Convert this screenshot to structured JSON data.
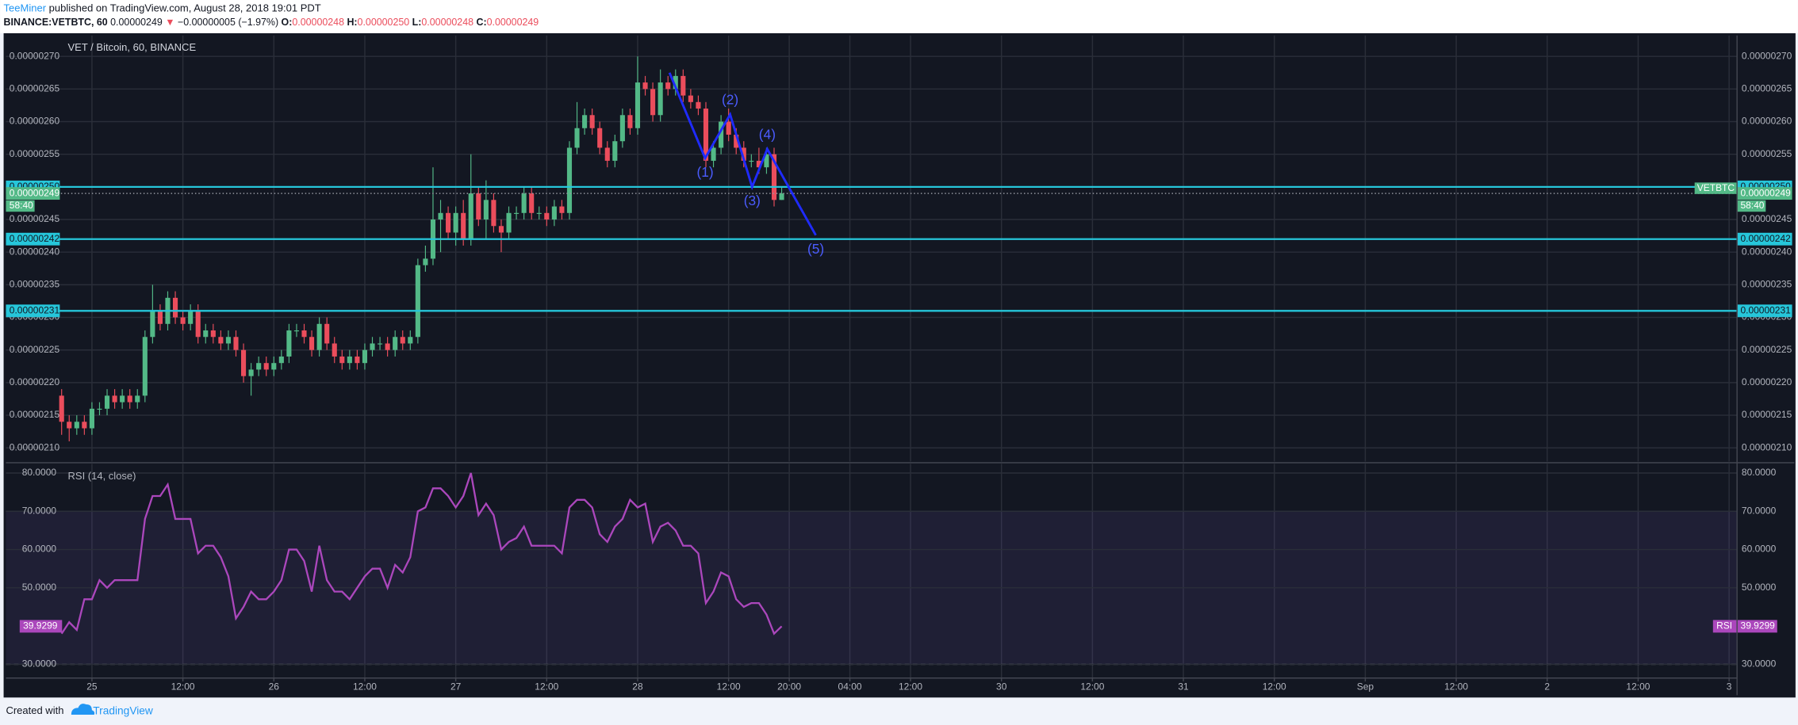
{
  "header": {
    "author": "TeeMiner",
    "published": "published on TradingView.com, August 28, 2018 19:01 PDT",
    "symbol": "BINANCE:VETBTC, 60",
    "last": "0.00000249",
    "arrow": "▼",
    "change": "−0.00000005 (−1.97%)",
    "ohlc": [
      {
        "label": "O:",
        "value": "0.00000248"
      },
      {
        "label": "H:",
        "value": "0.00000250"
      },
      {
        "label": "L:",
        "value": "0.00000248"
      },
      {
        "label": "C:",
        "value": "0.00000249"
      }
    ]
  },
  "footer": {
    "created": "Created with",
    "brand": "TradingView"
  },
  "chart_data": [
    {
      "type": "candlestick",
      "title": "VET / Bitcoin, 60, BINANCE",
      "x": [
        -4,
        -3,
        -2,
        -1,
        0,
        1,
        2,
        3,
        4,
        5,
        6,
        7,
        8,
        9,
        10,
        11,
        12,
        13,
        14,
        15,
        16,
        17,
        18,
        19,
        20,
        21,
        22,
        23,
        24,
        25,
        26,
        27,
        28,
        29,
        30,
        31,
        32,
        33,
        34,
        35,
        36,
        37,
        38,
        39,
        40,
        41,
        42,
        43,
        44,
        45,
        46,
        47,
        48,
        49,
        50,
        51,
        52,
        53,
        54,
        55,
        56,
        57,
        58,
        59,
        60,
        61,
        62,
        63,
        64,
        65,
        66,
        67,
        68,
        69,
        70,
        71,
        72,
        73,
        74,
        75,
        76,
        77,
        78,
        79,
        80,
        81,
        82,
        83,
        84,
        85,
        86,
        87,
        88,
        89,
        90,
        91
      ],
      "open": [
        2.18e-06,
        2.14e-06,
        2.13e-06,
        2.14e-06,
        2.13e-06,
        2.16e-06,
        2.16e-06,
        2.18e-06,
        2.17e-06,
        2.18e-06,
        2.17e-06,
        2.18e-06,
        2.27e-06,
        2.31e-06,
        2.29e-06,
        2.33e-06,
        2.3e-06,
        2.29e-06,
        2.31e-06,
        2.27e-06,
        2.28e-06,
        2.27e-06,
        2.26e-06,
        2.27e-06,
        2.25e-06,
        2.21e-06,
        2.22e-06,
        2.23e-06,
        2.22e-06,
        2.23e-06,
        2.24e-06,
        2.28e-06,
        2.28e-06,
        2.27e-06,
        2.25e-06,
        2.29e-06,
        2.26e-06,
        2.24e-06,
        2.23e-06,
        2.24e-06,
        2.23e-06,
        2.25e-06,
        2.26e-06,
        2.26e-06,
        2.25e-06,
        2.27e-06,
        2.26e-06,
        2.27e-06,
        2.38e-06,
        2.39e-06,
        2.45e-06,
        2.46e-06,
        2.43e-06,
        2.46e-06,
        2.42e-06,
        2.49e-06,
        2.45e-06,
        2.48e-06,
        2.44e-06,
        2.43e-06,
        2.46e-06,
        2.46e-06,
        2.49e-06,
        2.46e-06,
        2.46e-06,
        2.45e-06,
        2.47e-06,
        2.46e-06,
        2.56e-06,
        2.59e-06,
        2.61e-06,
        2.59e-06,
        2.56e-06,
        2.54e-06,
        2.57e-06,
        2.61e-06,
        2.59e-06,
        2.66e-06,
        2.65e-06,
        2.61e-06,
        2.66e-06,
        2.65e-06,
        2.67e-06,
        2.64e-06,
        2.63e-06,
        2.62e-06,
        2.54e-06,
        2.56e-06,
        2.6e-06,
        2.58e-06,
        2.56e-06,
        2.54e-06,
        2.54e-06,
        2.53e-06,
        2.55e-06,
        2.48e-06
      ],
      "high": [
        2.19e-06,
        2.15e-06,
        2.15e-06,
        2.15e-06,
        2.17e-06,
        2.17e-06,
        2.19e-06,
        2.19e-06,
        2.19e-06,
        2.19e-06,
        2.19e-06,
        2.28e-06,
        2.35e-06,
        2.32e-06,
        2.34e-06,
        2.34e-06,
        2.31e-06,
        2.32e-06,
        2.32e-06,
        2.29e-06,
        2.29e-06,
        2.28e-06,
        2.28e-06,
        2.28e-06,
        2.26e-06,
        2.23e-06,
        2.24e-06,
        2.24e-06,
        2.24e-06,
        2.25e-06,
        2.29e-06,
        2.29e-06,
        2.29e-06,
        2.28e-06,
        2.3e-06,
        2.3e-06,
        2.27e-06,
        2.25e-06,
        2.25e-06,
        2.25e-06,
        2.26e-06,
        2.27e-06,
        2.27e-06,
        2.27e-06,
        2.28e-06,
        2.28e-06,
        2.28e-06,
        2.39e-06,
        2.41e-06,
        2.53e-06,
        2.48e-06,
        2.47e-06,
        2.47e-06,
        2.48e-06,
        2.55e-06,
        2.5e-06,
        2.51e-06,
        2.49e-06,
        2.45e-06,
        2.47e-06,
        2.47e-06,
        2.5e-06,
        2.5e-06,
        2.47e-06,
        2.47e-06,
        2.48e-06,
        2.48e-06,
        2.57e-06,
        2.63e-06,
        2.62e-06,
        2.62e-06,
        2.6e-06,
        2.57e-06,
        2.58e-06,
        2.62e-06,
        2.62e-06,
        2.7e-06,
        2.67e-06,
        2.66e-06,
        2.68e-06,
        2.67e-06,
        2.68e-06,
        2.68e-06,
        2.65e-06,
        2.64e-06,
        2.63e-06,
        2.57e-06,
        2.61e-06,
        2.62e-06,
        2.59e-06,
        2.57e-06,
        2.55e-06,
        2.56e-06,
        2.56e-06,
        2.56e-06,
        2.5e-06
      ],
      "low": [
        2.12e-06,
        2.11e-06,
        2.12e-06,
        2.12e-06,
        2.12e-06,
        2.15e-06,
        2.15e-06,
        2.16e-06,
        2.16e-06,
        2.16e-06,
        2.16e-06,
        2.17e-06,
        2.26e-06,
        2.28e-06,
        2.28e-06,
        2.29e-06,
        2.28e-06,
        2.28e-06,
        2.26e-06,
        2.26e-06,
        2.26e-06,
        2.25e-06,
        2.25e-06,
        2.24e-06,
        2.2e-06,
        2.18e-06,
        2.21e-06,
        2.21e-06,
        2.21e-06,
        2.22e-06,
        2.23e-06,
        2.27e-06,
        2.26e-06,
        2.24e-06,
        2.24e-06,
        2.25e-06,
        2.23e-06,
        2.22e-06,
        2.22e-06,
        2.22e-06,
        2.22e-06,
        2.24e-06,
        2.25e-06,
        2.24e-06,
        2.24e-06,
        2.25e-06,
        2.25e-06,
        2.26e-06,
        2.37e-06,
        2.38e-06,
        2.4e-06,
        2.42e-06,
        2.41e-06,
        2.41e-06,
        2.41e-06,
        2.44e-06,
        2.42e-06,
        2.43e-06,
        2.4e-06,
        2.42e-06,
        2.45e-06,
        2.45e-06,
        2.45e-06,
        2.45e-06,
        2.44e-06,
        2.44e-06,
        2.45e-06,
        2.45e-06,
        2.55e-06,
        2.58e-06,
        2.58e-06,
        2.55e-06,
        2.53e-06,
        2.53e-06,
        2.56e-06,
        2.58e-06,
        2.58e-06,
        2.64e-06,
        2.6e-06,
        2.6e-06,
        2.64e-06,
        2.64e-06,
        2.63e-06,
        2.62e-06,
        2.61e-06,
        2.53e-06,
        2.53e-06,
        2.55e-06,
        2.57e-06,
        2.55e-06,
        2.53e-06,
        2.53e-06,
        2.52e-06,
        2.52e-06,
        2.47e-06,
        2.48e-06
      ],
      "close": [
        2.14e-06,
        2.13e-06,
        2.14e-06,
        2.13e-06,
        2.16e-06,
        2.16e-06,
        2.18e-06,
        2.17e-06,
        2.18e-06,
        2.17e-06,
        2.18e-06,
        2.27e-06,
        2.31e-06,
        2.29e-06,
        2.33e-06,
        2.3e-06,
        2.29e-06,
        2.31e-06,
        2.27e-06,
        2.28e-06,
        2.27e-06,
        2.26e-06,
        2.27e-06,
        2.25e-06,
        2.21e-06,
        2.22e-06,
        2.23e-06,
        2.22e-06,
        2.23e-06,
        2.24e-06,
        2.28e-06,
        2.28e-06,
        2.27e-06,
        2.25e-06,
        2.29e-06,
        2.26e-06,
        2.24e-06,
        2.23e-06,
        2.24e-06,
        2.23e-06,
        2.25e-06,
        2.26e-06,
        2.26e-06,
        2.25e-06,
        2.27e-06,
        2.26e-06,
        2.27e-06,
        2.38e-06,
        2.39e-06,
        2.45e-06,
        2.46e-06,
        2.43e-06,
        2.46e-06,
        2.42e-06,
        2.49e-06,
        2.45e-06,
        2.48e-06,
        2.44e-06,
        2.43e-06,
        2.46e-06,
        2.46e-06,
        2.49e-06,
        2.46e-06,
        2.46e-06,
        2.45e-06,
        2.47e-06,
        2.46e-06,
        2.56e-06,
        2.59e-06,
        2.61e-06,
        2.59e-06,
        2.56e-06,
        2.54e-06,
        2.57e-06,
        2.61e-06,
        2.59e-06,
        2.66e-06,
        2.65e-06,
        2.61e-06,
        2.66e-06,
        2.65e-06,
        2.67e-06,
        2.64e-06,
        2.63e-06,
        2.62e-06,
        2.54e-06,
        2.56e-06,
        2.6e-06,
        2.58e-06,
        2.56e-06,
        2.54e-06,
        2.54e-06,
        2.53e-06,
        2.55e-06,
        2.48e-06,
        2.49e-06
      ],
      "up_color": "#53b987",
      "down_color": "#eb4d5c",
      "xlim": [
        -11.35,
        217.05
      ],
      "xticks": [
        {
          "value": 0,
          "label": "25"
        },
        {
          "value": 12,
          "label": "12:00"
        },
        {
          "value": 24,
          "label": "26"
        },
        {
          "value": 36,
          "label": "12:00"
        },
        {
          "value": 48,
          "label": "27"
        },
        {
          "value": 60,
          "label": "12:00"
        },
        {
          "value": 72,
          "label": "28"
        },
        {
          "value": 84,
          "label": "12:00"
        },
        {
          "value": 92,
          "label": "20:00"
        },
        {
          "value": 100,
          "label": "04:00"
        },
        {
          "value": 108,
          "label": "12:00"
        },
        {
          "value": 120,
          "label": "30"
        },
        {
          "value": 132,
          "label": "12:00"
        },
        {
          "value": 144,
          "label": "31"
        },
        {
          "value": 156,
          "label": "12:00"
        },
        {
          "value": 168,
          "label": "Sep"
        },
        {
          "value": 180,
          "label": "12:00"
        },
        {
          "value": 192,
          "label": "2"
        },
        {
          "value": 204,
          "label": "12:00"
        },
        {
          "value": 216,
          "label": "3"
        }
      ],
      "ylim": [
        2.079e-06,
        2.732e-06
      ],
      "yticks": [
        {
          "value": 2.1e-06,
          "label": "0.00000210"
        },
        {
          "value": 2.15e-06,
          "label": "0.00000215"
        },
        {
          "value": 2.2e-06,
          "label": "0.00000220"
        },
        {
          "value": 2.25e-06,
          "label": "0.00000225"
        },
        {
          "value": 2.3e-06,
          "label": "0.00000230"
        },
        {
          "value": 2.35e-06,
          "label": "0.00000235"
        },
        {
          "value": 2.4e-06,
          "label": "0.00000240"
        },
        {
          "value": 2.45e-06,
          "label": "0.00000245"
        },
        {
          "value": 2.5e-06,
          "label": "0.00000250"
        },
        {
          "value": 2.55e-06,
          "label": "0.00000255"
        },
        {
          "value": 2.6e-06,
          "label": "0.00000260"
        },
        {
          "value": 2.65e-06,
          "label": "0.00000265"
        },
        {
          "value": 2.7e-06,
          "label": "0.00000270"
        }
      ],
      "grid": true,
      "levels": [
        {
          "value": 2.5e-06,
          "label": "0.00000250",
          "color": "#26c6da"
        },
        {
          "value": 2.42e-06,
          "label": "0.00000242",
          "color": "#26c6da"
        },
        {
          "value": 2.31e-06,
          "label": "0.00000231",
          "color": "#26c6da"
        }
      ],
      "last": {
        "value": 2.49e-06,
        "label": "0.00000249",
        "color": "#53b987",
        "symbol": "VETBTC",
        "countdown": "58:40"
      },
      "wave": {
        "color": "#1f2bff",
        "x": [
          76.2,
          80.9,
          84.2,
          87.1,
          89.1,
          95.5
        ],
        "y": [
          2.675e-06,
          2.544e-06,
          2.611e-06,
          2.5e-06,
          2.558e-06,
          2.426e-06
        ],
        "labels": [
          "(1)",
          "(2)",
          "(3)",
          "(4)",
          "(5)"
        ],
        "label_color": "#4b5cff"
      }
    },
    {
      "type": "line",
      "title": "RSI (14, close)",
      "series": [
        {
          "name": "RSI",
          "color": "#ab47bc",
          "values": [
            38,
            41,
            39,
            47,
            47,
            52,
            50,
            52,
            52,
            52,
            52,
            68,
            74,
            74,
            77,
            68,
            68,
            68,
            59,
            61,
            61,
            58,
            53,
            42,
            45,
            49,
            47,
            47,
            49,
            52,
            60,
            60,
            57,
            49,
            61,
            52,
            49,
            49,
            47,
            50,
            53,
            55,
            55,
            50,
            56,
            54,
            58,
            70,
            71,
            76,
            76,
            74,
            71,
            74,
            80,
            69,
            72,
            69,
            60,
            62,
            63,
            66,
            61,
            61,
            61,
            61,
            59,
            71,
            73,
            73,
            71,
            64,
            62,
            66,
            68,
            73,
            71,
            72,
            62,
            66,
            67,
            65,
            61,
            61,
            59,
            46,
            49,
            54,
            53,
            47,
            45,
            46,
            46,
            43,
            38,
            39.9299
          ]
        }
      ],
      "ylim": [
        26.4,
        82.4
      ],
      "yticks": [
        {
          "value": 30,
          "label": "30.0000"
        },
        {
          "value": 50,
          "label": "50.0000"
        },
        {
          "value": 60,
          "label": "60.0000"
        },
        {
          "value": 70,
          "label": "70.0000"
        },
        {
          "value": 80,
          "label": "80.0000"
        }
      ],
      "band": [
        30,
        70
      ],
      "band_color": "#7e57c2",
      "grid": true
    }
  ]
}
